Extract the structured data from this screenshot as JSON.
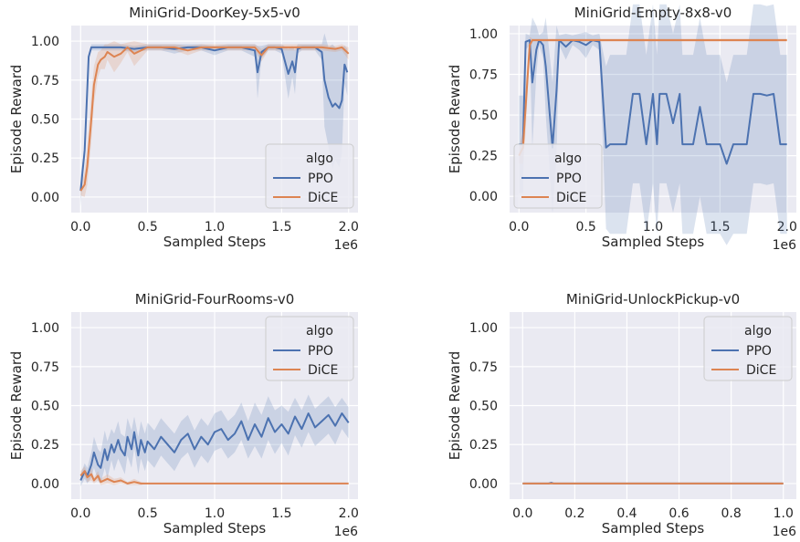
{
  "chart_data": [
    {
      "type": "line",
      "title": "MiniGrid-DoorKey-5x5-v0",
      "xlabel": "Sampled Steps",
      "ylabel": "Episode Reward",
      "offset_text": "1e6",
      "xlim": [
        -0.07,
        2.07
      ],
      "ylim": [
        -0.1,
        1.1
      ],
      "xticks": [
        0,
        0.5,
        1.0,
        1.5,
        2.0
      ],
      "xtick_labels": [
        "0.0",
        "0.5",
        "1.0",
        "1.5",
        "2.0"
      ],
      "yticks": [
        0,
        0.25,
        0.5,
        0.75,
        1.0
      ],
      "ytick_labels": [
        "0.00",
        "0.25",
        "0.50",
        "0.75",
        "1.00"
      ],
      "grid": true,
      "legend": {
        "title": "algo",
        "position": "lower-right"
      },
      "series": [
        {
          "name": "PPO",
          "color": "#4c72b0",
          "x": [
            0,
            0.03,
            0.06,
            0.08,
            0.1,
            0.2,
            0.3,
            0.4,
            0.5,
            0.6,
            0.7,
            0.8,
            0.9,
            1.0,
            1.1,
            1.2,
            1.3,
            1.32,
            1.35,
            1.4,
            1.45,
            1.5,
            1.55,
            1.58,
            1.6,
            1.62,
            1.65,
            1.7,
            1.75,
            1.8,
            1.82,
            1.85,
            1.88,
            1.9,
            1.93,
            1.95,
            1.97,
            1.99
          ],
          "y": [
            0.04,
            0.3,
            0.9,
            0.96,
            0.96,
            0.96,
            0.96,
            0.95,
            0.96,
            0.96,
            0.95,
            0.96,
            0.96,
            0.94,
            0.96,
            0.96,
            0.94,
            0.8,
            0.93,
            0.96,
            0.96,
            0.95,
            0.79,
            0.87,
            0.8,
            0.95,
            0.96,
            0.96,
            0.96,
            0.93,
            0.75,
            0.64,
            0.58,
            0.6,
            0.57,
            0.62,
            0.85,
            0.8
          ],
          "band": [
            0.1,
            0.02,
            0.02,
            0.02,
            0.02,
            0.02,
            0.02,
            0.02,
            0.02,
            0.02,
            0.03,
            0.02,
            0.02,
            0.03,
            0.02,
            0.02,
            0.04,
            0.17,
            0.04,
            0.02,
            0.02,
            0.03,
            0.16,
            0.1,
            0.14,
            0.03,
            0.02,
            0.02,
            0.02,
            0.05,
            0.3,
            0.32,
            0.4,
            0.36,
            0.38,
            0.34,
            0.12,
            0.15
          ]
        },
        {
          "name": "DiCE",
          "color": "#dd8452",
          "x": [
            0,
            0.03,
            0.05,
            0.08,
            0.1,
            0.13,
            0.15,
            0.18,
            0.2,
            0.25,
            0.3,
            0.35,
            0.4,
            0.5,
            0.6,
            0.7,
            0.8,
            0.9,
            1.0,
            1.1,
            1.2,
            1.3,
            1.35,
            1.4,
            1.5,
            1.6,
            1.7,
            1.8,
            1.9,
            1.95,
            2.0
          ],
          "y": [
            0.04,
            0.08,
            0.2,
            0.5,
            0.72,
            0.85,
            0.88,
            0.9,
            0.93,
            0.9,
            0.92,
            0.96,
            0.92,
            0.96,
            0.96,
            0.96,
            0.94,
            0.96,
            0.96,
            0.96,
            0.96,
            0.96,
            0.91,
            0.96,
            0.96,
            0.96,
            0.96,
            0.96,
            0.95,
            0.96,
            0.92
          ],
          "band": [
            0.03,
            0.08,
            0.12,
            0.15,
            0.12,
            0.08,
            0.06,
            0.08,
            0.05,
            0.1,
            0.06,
            0.03,
            0.08,
            0.02,
            0.02,
            0.02,
            0.03,
            0.02,
            0.02,
            0.02,
            0.02,
            0.02,
            0.04,
            0.02,
            0.02,
            0.02,
            0.02,
            0.02,
            0.02,
            0.02,
            0.04
          ]
        }
      ]
    },
    {
      "type": "line",
      "title": "MiniGrid-Empty-8x8-v0",
      "xlabel": "Sampled Steps",
      "ylabel": "Episode Reward",
      "offset_text": "1e6",
      "xlim": [
        -0.07,
        2.07
      ],
      "ylim": [
        -0.1,
        1.05
      ],
      "xticks": [
        0,
        0.5,
        1.0,
        1.5,
        2.0
      ],
      "xtick_labels": [
        "0.0",
        "0.5",
        "1.0",
        "1.5",
        "2.0"
      ],
      "yticks": [
        0,
        0.25,
        0.5,
        0.75,
        1.0
      ],
      "ytick_labels": [
        "0.00",
        "0.25",
        "0.50",
        "0.75",
        "1.00"
      ],
      "grid": true,
      "legend": {
        "title": "algo",
        "position": "lower-left"
      },
      "series": [
        {
          "name": "PPO",
          "color": "#4c72b0",
          "x": [
            0,
            0.03,
            0.05,
            0.08,
            0.1,
            0.13,
            0.15,
            0.18,
            0.2,
            0.25,
            0.28,
            0.3,
            0.35,
            0.4,
            0.45,
            0.5,
            0.55,
            0.6,
            0.65,
            0.68,
            0.7,
            0.8,
            0.85,
            0.9,
            0.95,
            1.0,
            1.03,
            1.05,
            1.1,
            1.15,
            1.2,
            1.22,
            1.25,
            1.3,
            1.35,
            1.4,
            1.45,
            1.5,
            1.55,
            1.6,
            1.65,
            1.7,
            1.75,
            1.8,
            1.85,
            1.9,
            1.95,
            2.0
          ],
          "y": [
            0.32,
            0.32,
            0.95,
            0.96,
            0.7,
            0.9,
            0.96,
            0.93,
            0.8,
            0.3,
            0.65,
            0.96,
            0.92,
            0.96,
            0.95,
            0.93,
            0.96,
            0.95,
            0.3,
            0.32,
            0.32,
            0.32,
            0.63,
            0.63,
            0.32,
            0.63,
            0.32,
            0.63,
            0.63,
            0.45,
            0.63,
            0.32,
            0.32,
            0.32,
            0.55,
            0.32,
            0.32,
            0.32,
            0.2,
            0.32,
            0.32,
            0.32,
            0.63,
            0.63,
            0.62,
            0.63,
            0.32,
            0.32
          ],
          "band": [
            0.3,
            0.3,
            0.05,
            0.03,
            0.4,
            0.15,
            0.03,
            0.08,
            0.3,
            0.4,
            0.4,
            0.03,
            0.08,
            0.03,
            0.05,
            0.08,
            0.03,
            0.05,
            0.5,
            0.55,
            0.55,
            0.55,
            0.55,
            0.55,
            0.55,
            0.55,
            0.55,
            0.55,
            0.55,
            0.55,
            0.55,
            0.55,
            0.55,
            0.55,
            0.55,
            0.55,
            0.55,
            0.55,
            0.5,
            0.55,
            0.55,
            0.55,
            0.55,
            0.55,
            0.55,
            0.55,
            0.55,
            0.55
          ]
        },
        {
          "name": "DiCE",
          "color": "#dd8452",
          "x": [
            0,
            0.03,
            0.05,
            0.08,
            0.1,
            0.15,
            0.2,
            0.5,
            1.0,
            1.5,
            2.0
          ],
          "y": [
            0.25,
            0.3,
            0.55,
            0.93,
            0.96,
            0.96,
            0.96,
            0.96,
            0.96,
            0.96,
            0.96
          ],
          "band": [
            0.05,
            0.1,
            0.15,
            0.05,
            0.01,
            0.01,
            0.01,
            0.01,
            0.01,
            0.01,
            0.01
          ]
        }
      ]
    },
    {
      "type": "line",
      "title": "MiniGrid-FourRooms-v0",
      "xlabel": "Sampled Steps",
      "ylabel": "Episode Reward",
      "offset_text": "1e6",
      "xlim": [
        -0.07,
        2.07
      ],
      "ylim": [
        -0.1,
        1.1
      ],
      "xticks": [
        0,
        0.5,
        1.0,
        1.5,
        2.0
      ],
      "xtick_labels": [
        "0.0",
        "0.5",
        "1.0",
        "1.5",
        "2.0"
      ],
      "yticks": [
        0,
        0.25,
        0.5,
        0.75,
        1.0
      ],
      "ytick_labels": [
        "0.00",
        "0.25",
        "0.50",
        "0.75",
        "1.00"
      ],
      "grid": true,
      "legend": {
        "title": "algo",
        "position": "upper-right"
      },
      "series": [
        {
          "name": "PPO",
          "color": "#4c72b0",
          "x": [
            0,
            0.03,
            0.05,
            0.08,
            0.1,
            0.13,
            0.15,
            0.18,
            0.2,
            0.23,
            0.25,
            0.28,
            0.3,
            0.33,
            0.35,
            0.38,
            0.4,
            0.43,
            0.45,
            0.48,
            0.5,
            0.55,
            0.6,
            0.65,
            0.7,
            0.75,
            0.8,
            0.85,
            0.9,
            0.95,
            1.0,
            1.05,
            1.1,
            1.15,
            1.2,
            1.25,
            1.3,
            1.35,
            1.4,
            1.45,
            1.5,
            1.55,
            1.6,
            1.65,
            1.7,
            1.75,
            1.8,
            1.85,
            1.9,
            1.95,
            2.0
          ],
          "y": [
            0.02,
            0.08,
            0.05,
            0.12,
            0.2,
            0.12,
            0.1,
            0.22,
            0.15,
            0.25,
            0.2,
            0.28,
            0.22,
            0.18,
            0.3,
            0.22,
            0.33,
            0.18,
            0.28,
            0.2,
            0.27,
            0.22,
            0.3,
            0.25,
            0.2,
            0.28,
            0.32,
            0.22,
            0.3,
            0.25,
            0.33,
            0.35,
            0.28,
            0.32,
            0.4,
            0.28,
            0.38,
            0.3,
            0.42,
            0.33,
            0.38,
            0.32,
            0.43,
            0.35,
            0.45,
            0.36,
            0.4,
            0.44,
            0.37,
            0.45,
            0.39
          ],
          "band": [
            0.04,
            0.05,
            0.05,
            0.08,
            0.1,
            0.1,
            0.1,
            0.12,
            0.12,
            0.1,
            0.12,
            0.12,
            0.1,
            0.12,
            0.12,
            0.12,
            0.1,
            0.12,
            0.12,
            0.12,
            0.12,
            0.12,
            0.12,
            0.12,
            0.12,
            0.12,
            0.12,
            0.12,
            0.12,
            0.12,
            0.12,
            0.12,
            0.12,
            0.12,
            0.12,
            0.12,
            0.14,
            0.14,
            0.14,
            0.14,
            0.12,
            0.14,
            0.12,
            0.12,
            0.12,
            0.12,
            0.12,
            0.12,
            0.12,
            0.1,
            0.1
          ]
        },
        {
          "name": "DiCE",
          "color": "#dd8452",
          "x": [
            0,
            0.03,
            0.05,
            0.08,
            0.1,
            0.13,
            0.15,
            0.2,
            0.25,
            0.3,
            0.35,
            0.4,
            0.45,
            0.5,
            1.0,
            1.5,
            2.0
          ],
          "y": [
            0.05,
            0.08,
            0.04,
            0.06,
            0.02,
            0.05,
            0.01,
            0.03,
            0.01,
            0.02,
            0.0,
            0.01,
            0.0,
            0.0,
            0.0,
            0.0,
            0.0
          ],
          "band": [
            0.03,
            0.03,
            0.03,
            0.04,
            0.02,
            0.03,
            0.02,
            0.03,
            0.02,
            0.02,
            0.01,
            0.02,
            0.01,
            0.0,
            0.0,
            0.0,
            0.0
          ]
        }
      ]
    },
    {
      "type": "line",
      "title": "MiniGrid-UnlockPickup-v0",
      "xlabel": "Sampled Steps",
      "ylabel": "Episode Reward",
      "offset_text": "1e6",
      "xlim": [
        -0.05,
        1.05
      ],
      "ylim": [
        -0.1,
        1.1
      ],
      "xticks": [
        0,
        0.2,
        0.4,
        0.6,
        0.8,
        1.0
      ],
      "xtick_labels": [
        "0.0",
        "0.2",
        "0.4",
        "0.6",
        "0.8",
        "1.0"
      ],
      "yticks": [
        0,
        0.25,
        0.5,
        0.75,
        1.0
      ],
      "ytick_labels": [
        "0.00",
        "0.25",
        "0.50",
        "0.75",
        "1.00"
      ],
      "grid": true,
      "legend": {
        "title": "algo",
        "position": "upper-right"
      },
      "series": [
        {
          "name": "PPO",
          "color": "#4c72b0",
          "x": [
            0,
            0.1,
            0.11,
            0.12,
            0.2,
            0.5,
            1.0
          ],
          "y": [
            0.0,
            0.0,
            0.005,
            0.0,
            0.0,
            0.0,
            0.0
          ],
          "band": [
            0,
            0,
            0.004,
            0,
            0,
            0,
            0
          ]
        },
        {
          "name": "DiCE",
          "color": "#dd8452",
          "x": [
            0,
            0.5,
            1.0
          ],
          "y": [
            0.0,
            0.0,
            0.0
          ],
          "band": [
            0,
            0,
            0
          ]
        }
      ]
    }
  ]
}
